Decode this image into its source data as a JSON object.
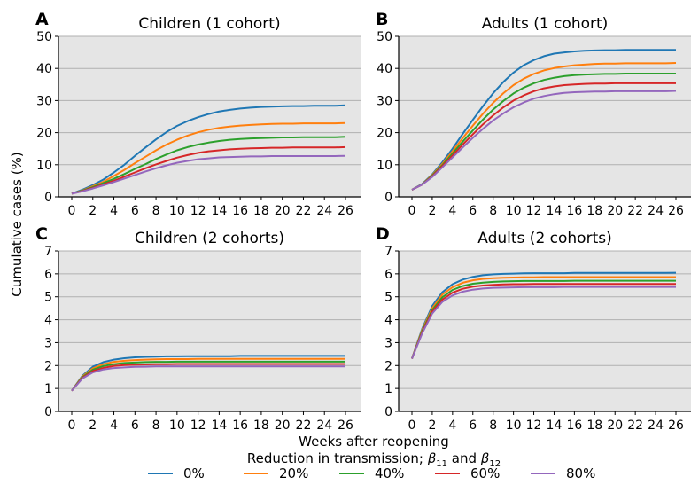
{
  "chart_data": {
    "type": "line",
    "shared_ylabel": "Cumulative cases (%)",
    "shared_xlabel": "Weeks after reopening",
    "legend": {
      "title_prefix": "Reduction in transmission; ",
      "title_b1": "11",
      "title_mid": " and ",
      "title_b2": "12",
      "placement": "bottom-center",
      "entries": [
        "0%",
        "20%",
        "40%",
        "60%",
        "80%"
      ]
    },
    "colors": [
      "#1f77b4",
      "#ff7f0e",
      "#2ca02c",
      "#d62728",
      "#9467bd"
    ],
    "x_ticks": [
      "0",
      "2",
      "4",
      "6",
      "8",
      "10",
      "12",
      "14",
      "16",
      "18",
      "20",
      "22",
      "24",
      "26"
    ],
    "grid": "horizontal",
    "panels": [
      {
        "letter": "A",
        "title": "Children (1 cohort)",
        "ylim": [
          0,
          50
        ],
        "yticks": [
          0,
          10,
          20,
          30,
          40,
          50
        ],
        "x": [
          0,
          1,
          2,
          3,
          4,
          5,
          6,
          7,
          8,
          9,
          10,
          11,
          12,
          13,
          14,
          15,
          16,
          17,
          18,
          19,
          20,
          21,
          22,
          23,
          24,
          25,
          26
        ],
        "series": [
          {
            "values": [
              1.0,
              2.2,
              3.7,
              5.4,
              7.6,
              10.0,
              12.8,
              15.4,
              17.9,
              20.2,
              22.1,
              23.6,
              24.8,
              25.8,
              26.6,
              27.1,
              27.5,
              27.8,
              28.0,
              28.1,
              28.2,
              28.3,
              28.3,
              28.4,
              28.4,
              28.4,
              28.5
            ]
          },
          {
            "values": [
              1.0,
              2.0,
              3.3,
              4.7,
              6.5,
              8.4,
              10.5,
              12.5,
              14.5,
              16.3,
              17.8,
              19.1,
              20.1,
              20.9,
              21.5,
              21.9,
              22.2,
              22.4,
              22.6,
              22.7,
              22.8,
              22.8,
              22.9,
              22.9,
              22.9,
              22.9,
              23.0
            ]
          },
          {
            "values": [
              1.0,
              1.9,
              3.0,
              4.3,
              5.6,
              7.1,
              8.7,
              10.2,
              11.8,
              13.2,
              14.5,
              15.5,
              16.3,
              16.9,
              17.4,
              17.8,
              18.0,
              18.2,
              18.3,
              18.4,
              18.5,
              18.5,
              18.6,
              18.6,
              18.6,
              18.6,
              18.7
            ]
          },
          {
            "values": [
              1.0,
              1.8,
              2.8,
              3.9,
              5.0,
              6.3,
              7.6,
              8.9,
              10.1,
              11.2,
              12.2,
              13.0,
              13.7,
              14.2,
              14.5,
              14.8,
              15.0,
              15.1,
              15.2,
              15.3,
              15.3,
              15.4,
              15.4,
              15.4,
              15.4,
              15.4,
              15.5
            ]
          },
          {
            "values": [
              1.0,
              1.7,
              2.6,
              3.6,
              4.6,
              5.7,
              6.8,
              7.9,
              8.9,
              9.8,
              10.6,
              11.2,
              11.7,
              12.0,
              12.3,
              12.4,
              12.5,
              12.6,
              12.6,
              12.7,
              12.7,
              12.7,
              12.7,
              12.7,
              12.7,
              12.7,
              12.8
            ]
          }
        ]
      },
      {
        "letter": "B",
        "title": "Adults (1 cohort)",
        "ylim": [
          0,
          50
        ],
        "yticks": [
          0,
          10,
          20,
          30,
          40,
          50
        ],
        "x": [
          0,
          1,
          2,
          3,
          4,
          5,
          6,
          7,
          8,
          9,
          10,
          11,
          12,
          13,
          14,
          15,
          16,
          17,
          18,
          19,
          20,
          21,
          22,
          23,
          24,
          25,
          26
        ],
        "series": [
          {
            "values": [
              2.2,
              4.0,
              7.0,
              10.8,
              15.0,
              19.6,
              24.0,
              28.3,
              32.3,
              35.8,
              38.7,
              41.0,
              42.6,
              43.8,
              44.6,
              45.0,
              45.3,
              45.5,
              45.6,
              45.7,
              45.7,
              45.8,
              45.8,
              45.8,
              45.8,
              45.8,
              45.8
            ]
          },
          {
            "values": [
              2.2,
              3.9,
              6.8,
              10.3,
              14.2,
              18.3,
              22.2,
              25.9,
              29.3,
              32.3,
              34.8,
              36.8,
              38.3,
              39.4,
              40.1,
              40.6,
              41.0,
              41.2,
              41.4,
              41.5,
              41.5,
              41.6,
              41.6,
              41.6,
              41.6,
              41.6,
              41.7
            ]
          },
          {
            "values": [
              2.2,
              3.9,
              6.6,
              9.9,
              13.5,
              17.2,
              20.7,
              24.1,
              27.2,
              29.9,
              32.2,
              34.0,
              35.4,
              36.4,
              37.1,
              37.6,
              37.9,
              38.1,
              38.2,
              38.3,
              38.3,
              38.4,
              38.4,
              38.4,
              38.4,
              38.4,
              38.4
            ]
          },
          {
            "values": [
              2.2,
              3.8,
              6.4,
              9.6,
              12.9,
              16.3,
              19.5,
              22.6,
              25.4,
              27.9,
              30.0,
              31.6,
              32.9,
              33.8,
              34.4,
              34.8,
              35.0,
              35.2,
              35.3,
              35.3,
              35.4,
              35.4,
              35.4,
              35.4,
              35.4,
              35.4,
              35.4
            ]
          },
          {
            "values": [
              2.2,
              3.8,
              6.2,
              9.2,
              12.3,
              15.4,
              18.4,
              21.2,
              23.8,
              26.0,
              27.9,
              29.4,
              30.6,
              31.4,
              32.0,
              32.4,
              32.6,
              32.7,
              32.8,
              32.8,
              32.9,
              32.9,
              32.9,
              32.9,
              32.9,
              32.9,
              33.0
            ]
          }
        ]
      },
      {
        "letter": "C",
        "title": "Children (2 cohorts)",
        "ylim": [
          0,
          7
        ],
        "yticks": [
          0,
          1,
          2,
          3,
          4,
          5,
          6,
          7
        ],
        "x": [
          0,
          1,
          2,
          3,
          4,
          5,
          6,
          7,
          8,
          9,
          10,
          11,
          12,
          13,
          14,
          15,
          16,
          17,
          18,
          19,
          20,
          21,
          22,
          23,
          24,
          25,
          26
        ],
        "series": [
          {
            "values": [
              0.9,
              1.55,
              1.95,
              2.15,
              2.26,
              2.32,
              2.36,
              2.38,
              2.39,
              2.4,
              2.4,
              2.41,
              2.41,
              2.41,
              2.41,
              2.41,
              2.42,
              2.42,
              2.42,
              2.42,
              2.42,
              2.42,
              2.42,
              2.42,
              2.42,
              2.42,
              2.42
            ]
          },
          {
            "values": [
              0.9,
              1.52,
              1.88,
              2.06,
              2.16,
              2.21,
              2.24,
              2.26,
              2.27,
              2.28,
              2.28,
              2.28,
              2.29,
              2.29,
              2.29,
              2.29,
              2.29,
              2.29,
              2.29,
              2.29,
              2.29,
              2.29,
              2.29,
              2.29,
              2.29,
              2.29,
              2.29
            ]
          },
          {
            "values": [
              0.9,
              1.49,
              1.82,
              1.98,
              2.06,
              2.11,
              2.13,
              2.15,
              2.16,
              2.16,
              2.17,
              2.17,
              2.17,
              2.17,
              2.17,
              2.17,
              2.17,
              2.17,
              2.17,
              2.17,
              2.17,
              2.17,
              2.17,
              2.17,
              2.17,
              2.17,
              2.17
            ]
          },
          {
            "values": [
              0.9,
              1.46,
              1.76,
              1.9,
              1.98,
              2.02,
              2.04,
              2.05,
              2.06,
              2.06,
              2.07,
              2.07,
              2.07,
              2.07,
              2.07,
              2.07,
              2.07,
              2.07,
              2.07,
              2.07,
              2.07,
              2.07,
              2.07,
              2.07,
              2.07,
              2.07,
              2.07
            ]
          },
          {
            "values": [
              0.9,
              1.43,
              1.7,
              1.83,
              1.89,
              1.92,
              1.94,
              1.95,
              1.96,
              1.96,
              1.96,
              1.96,
              1.96,
              1.96,
              1.96,
              1.96,
              1.96,
              1.96,
              1.96,
              1.96,
              1.96,
              1.96,
              1.96,
              1.96,
              1.96,
              1.96,
              1.96
            ]
          }
        ]
      },
      {
        "letter": "D",
        "title": "Adults (2 cohorts)",
        "ylim": [
          0,
          7
        ],
        "yticks": [
          0,
          1,
          2,
          3,
          4,
          5,
          6,
          7
        ],
        "x": [
          0,
          1,
          2,
          3,
          4,
          5,
          6,
          7,
          8,
          9,
          10,
          11,
          12,
          13,
          14,
          15,
          16,
          17,
          18,
          19,
          20,
          21,
          22,
          23,
          24,
          25,
          26
        ],
        "series": [
          {
            "values": [
              2.3,
              3.6,
              4.6,
              5.2,
              5.55,
              5.75,
              5.87,
              5.94,
              5.98,
              6.0,
              6.01,
              6.02,
              6.03,
              6.03,
              6.03,
              6.03,
              6.04,
              6.04,
              6.04,
              6.04,
              6.04,
              6.04,
              6.04,
              6.04,
              6.04,
              6.04,
              6.05
            ]
          },
          {
            "values": [
              2.3,
              3.55,
              4.5,
              5.1,
              5.42,
              5.61,
              5.72,
              5.78,
              5.81,
              5.83,
              5.84,
              5.85,
              5.85,
              5.86,
              5.86,
              5.86,
              5.86,
              5.86,
              5.86,
              5.86,
              5.86,
              5.86,
              5.86,
              5.86,
              5.86,
              5.86,
              5.86
            ]
          },
          {
            "values": [
              2.3,
              3.5,
              4.42,
              4.98,
              5.3,
              5.47,
              5.57,
              5.62,
              5.65,
              5.67,
              5.68,
              5.69,
              5.69,
              5.69,
              5.69,
              5.69,
              5.7,
              5.7,
              5.7,
              5.7,
              5.7,
              5.7,
              5.7,
              5.7,
              5.7,
              5.7,
              5.7
            ]
          },
          {
            "values": [
              2.3,
              3.45,
              4.35,
              4.88,
              5.18,
              5.35,
              5.44,
              5.49,
              5.52,
              5.54,
              5.55,
              5.55,
              5.56,
              5.56,
              5.56,
              5.56,
              5.56,
              5.56,
              5.56,
              5.56,
              5.56,
              5.56,
              5.56,
              5.56,
              5.56,
              5.56,
              5.56
            ]
          },
          {
            "values": [
              2.3,
              3.4,
              4.27,
              4.78,
              5.06,
              5.22,
              5.31,
              5.36,
              5.39,
              5.4,
              5.41,
              5.42,
              5.42,
              5.42,
              5.42,
              5.43,
              5.43,
              5.43,
              5.43,
              5.43,
              5.43,
              5.43,
              5.43,
              5.43,
              5.43,
              5.43,
              5.43
            ]
          }
        ]
      }
    ]
  }
}
